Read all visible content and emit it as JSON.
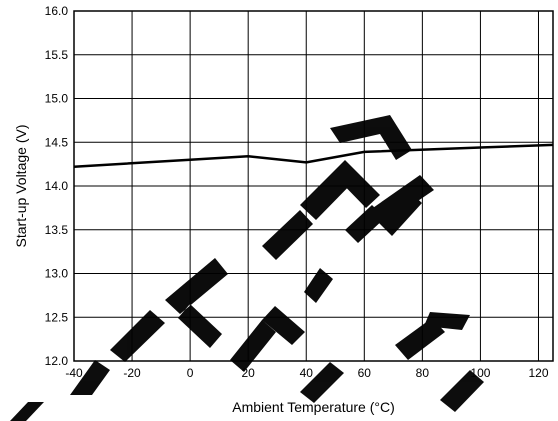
{
  "chart_data": {
    "type": "line",
    "xlabel": "Ambient Temperature (°C)",
    "ylabel": "Start-up Voltage (V)",
    "xlim": [
      -40,
      125
    ],
    "ylim": [
      12.0,
      16.0
    ],
    "x_ticks": [
      "-40",
      "-20",
      "0",
      "20",
      "40",
      "60",
      "80",
      "100",
      "120"
    ],
    "y_ticks": [
      "12.0",
      "12.5",
      "13.0",
      "13.5",
      "14.0",
      "14.5",
      "15.0",
      "15.5",
      "16.0"
    ],
    "grid": true,
    "series": [
      {
        "x": [
          -40,
          0,
          20,
          40,
          60,
          100,
          125
        ],
        "y": [
          14.22,
          14.3,
          14.34,
          14.27,
          14.39,
          14.44,
          14.47
        ],
        "color": "#000000"
      }
    ],
    "watermark": "NOT RECOMMENDED FOR NEW DESIGN"
  }
}
